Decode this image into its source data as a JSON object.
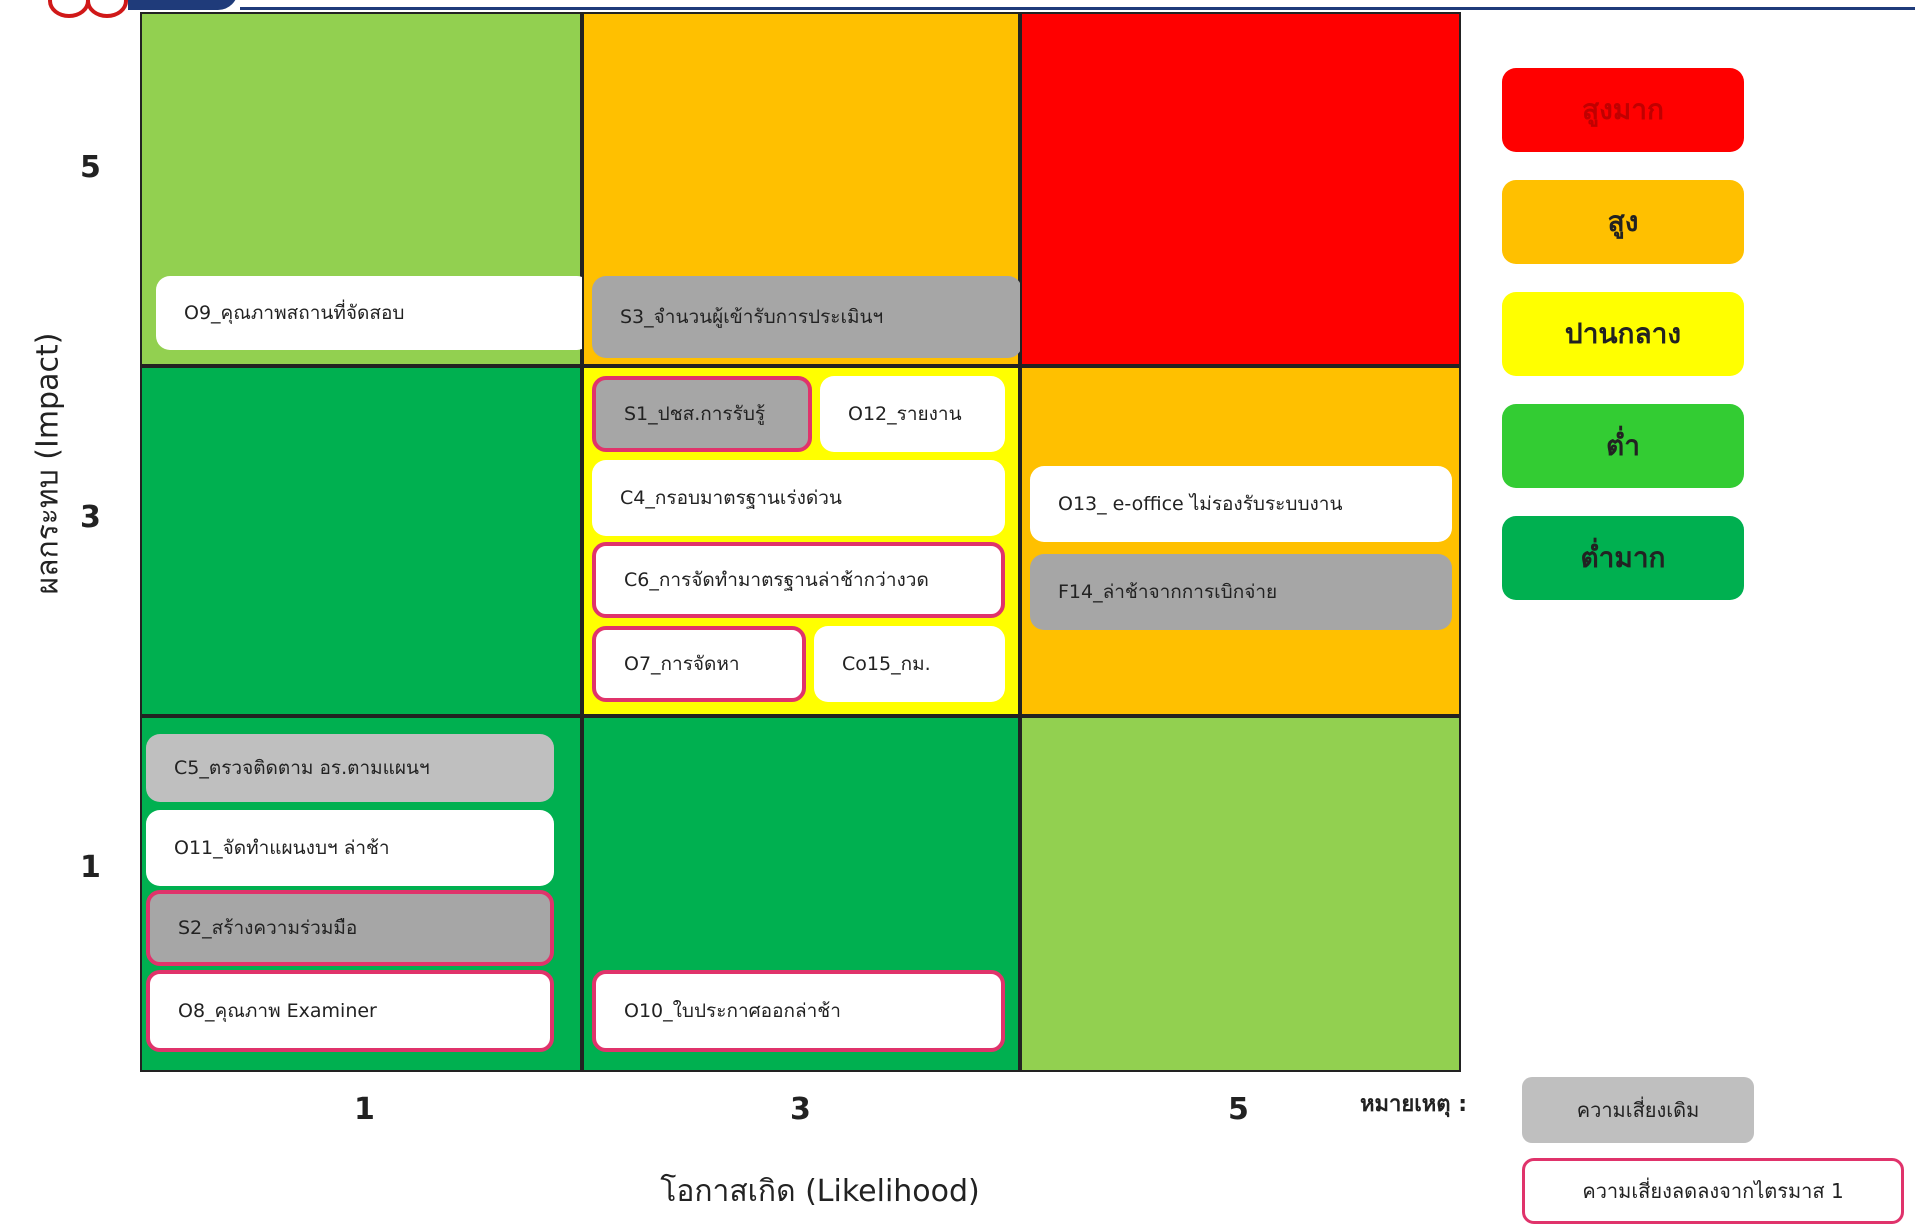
{
  "axes": {
    "y_title": "ผลกระทบ (Impact)",
    "x_title": "โอกาสเกิด (Likelihood)",
    "y_ticks": [
      "5",
      "3",
      "1"
    ],
    "x_ticks": [
      "1",
      "3",
      "5"
    ]
  },
  "colors": {
    "very_high": "#ff0000",
    "high": "#ffc000",
    "medium": "#ffff00",
    "low": "#92d050",
    "very_low": "#00b050",
    "existing_risk_fill": "#a6a6a6",
    "reduced_risk_border": "#e0336b"
  },
  "matrix": {
    "rows": [
      {
        "impact": "5",
        "cells": [
          {
            "likelihood": "1",
            "level": "low",
            "items": [
              {
                "label": "O9_คุณภาพสถานที่จัดสอบ",
                "style": "white"
              }
            ]
          },
          {
            "likelihood": "3",
            "level": "high",
            "items": [
              {
                "label": "S3_จำนวนผู้เข้ารับการประเมินฯ",
                "style": "gray"
              }
            ]
          },
          {
            "likelihood": "5",
            "level": "very_high",
            "items": []
          }
        ]
      },
      {
        "impact": "3",
        "cells": [
          {
            "likelihood": "1",
            "level": "very_low",
            "items": []
          },
          {
            "likelihood": "3",
            "level": "medium",
            "items": [
              {
                "label": "S1_ปชส.การรับรู้",
                "style": "gray",
                "reduced": true
              },
              {
                "label": "O12_รายงาน",
                "style": "white"
              },
              {
                "label": "C4_กรอบมาตรฐานเร่งด่วน",
                "style": "white"
              },
              {
                "label": "C6_การจัดทำมาตรฐานล่าช้ากว่างวด",
                "style": "white",
                "reduced": true
              },
              {
                "label": "O7_การจัดหา",
                "style": "white",
                "reduced": true
              },
              {
                "label": "Co15_กม.",
                "style": "white"
              }
            ]
          },
          {
            "likelihood": "5",
            "level": "high",
            "items": [
              {
                "label": "O13_ e-office ไม่รองรับระบบงาน",
                "style": "white"
              },
              {
                "label": "F14_ล่าช้าจากการเบิกจ่าย",
                "style": "gray"
              }
            ]
          }
        ]
      },
      {
        "impact": "1",
        "cells": [
          {
            "likelihood": "1",
            "level": "very_low",
            "items": [
              {
                "label": "C5_ตรวจติดตาม อร.ตามแผนฯ",
                "style": "lgray"
              },
              {
                "label": "O11_จัดทำแผนงบฯ ล่าช้า",
                "style": "white"
              },
              {
                "label": "S2_สร้างความร่วมมือ",
                "style": "gray",
                "reduced": true
              },
              {
                "label": "O8_คุณภาพ Examiner",
                "style": "white",
                "reduced": true
              }
            ]
          },
          {
            "likelihood": "3",
            "level": "very_low",
            "items": [
              {
                "label": "O10_ใบประกาศออกล่าช้า",
                "style": "white",
                "reduced": true
              }
            ]
          },
          {
            "likelihood": "5",
            "level": "low",
            "items": []
          }
        ]
      }
    ]
  },
  "legend": [
    {
      "label": "สูงมาก",
      "color": "#ff0000",
      "text_color": "#c00000"
    },
    {
      "label": "สูง",
      "color": "#ffc000",
      "text_color": "#222222"
    },
    {
      "label": "ปานกลาง",
      "color": "#ffff00",
      "text_color": "#222222"
    },
    {
      "label": "ต่ำ",
      "color": "#33cc33",
      "text_color": "#222222"
    },
    {
      "label": "ต่ำมาก",
      "color": "#00b050",
      "text_color": "#222222"
    }
  ],
  "note": {
    "label": "หมายเหตุ :",
    "existing": "ความเสี่ยงเดิม",
    "reduced": "ความเสี่ยงลดลงจากไตรมาส 1"
  }
}
